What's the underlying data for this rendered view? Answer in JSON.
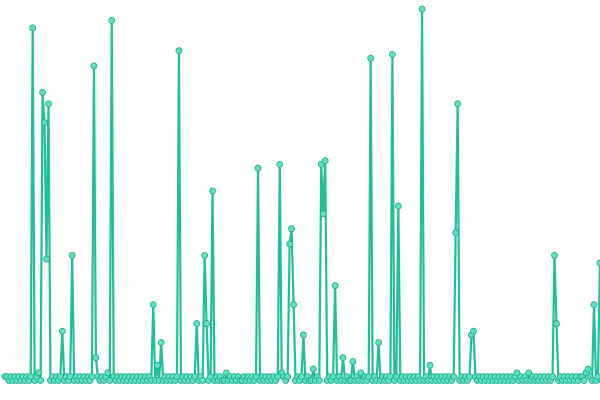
{
  "colors": {
    "line": "#1fbf9b",
    "marker_fill": "#5fe0c2",
    "marker_stroke": "#18a888",
    "background": "#ffffff"
  },
  "chart_data": {
    "type": "line",
    "title": "",
    "xlabel": "",
    "ylabel": "",
    "grid": false,
    "legend": "none",
    "xlim": [
      0,
      299
    ],
    "ylim": [
      0,
      100
    ],
    "series": [
      {
        "values": [
          3,
          3,
          2,
          3,
          2,
          3,
          2,
          3,
          2,
          3,
          2,
          3,
          2,
          3,
          95,
          2,
          3,
          4,
          2,
          78,
          70,
          34,
          75,
          2,
          3,
          2,
          3,
          2,
          3,
          15,
          2,
          3,
          2,
          3,
          35,
          2,
          3,
          2,
          3,
          2,
          3,
          2,
          3,
          2,
          3,
          85,
          8,
          3,
          2,
          3,
          2,
          3,
          4,
          2,
          97,
          3,
          2,
          3,
          2,
          3,
          2,
          3,
          2,
          3,
          2,
          3,
          2,
          3,
          2,
          3,
          2,
          3,
          2,
          3,
          2,
          22,
          2,
          6,
          2,
          12,
          2,
          3,
          2,
          3,
          2,
          3,
          2,
          3,
          89,
          2,
          3,
          2,
          3,
          2,
          3,
          2,
          3,
          17,
          2,
          3,
          2,
          35,
          17,
          2,
          3,
          52,
          2,
          3,
          2,
          3,
          2,
          2,
          4,
          2,
          3,
          2,
          3,
          2,
          3,
          2,
          2,
          3,
          2,
          3,
          2,
          3,
          2,
          3,
          58,
          2,
          3,
          2,
          3,
          2,
          3,
          2,
          3,
          2,
          3,
          59,
          4,
          3,
          2,
          3,
          38,
          42,
          22,
          2,
          3,
          2,
          3,
          14,
          2,
          3,
          2,
          2,
          5,
          2,
          3,
          2,
          59,
          46,
          60,
          2,
          3,
          2,
          3,
          27,
          2,
          3,
          2,
          8,
          2,
          3,
          2,
          2,
          7,
          2,
          3,
          2,
          4,
          2,
          3,
          2,
          3,
          87,
          2,
          3,
          2,
          12,
          2,
          3,
          2,
          3,
          2,
          3,
          88,
          2,
          3,
          48,
          2,
          3,
          2,
          3,
          2,
          3,
          2,
          3,
          2,
          3,
          2,
          100,
          2,
          3,
          2,
          6,
          2,
          3,
          2,
          3,
          2,
          3,
          2,
          3,
          2,
          3,
          2,
          3,
          41,
          75,
          2,
          3,
          2,
          3,
          2,
          3,
          14,
          15,
          3,
          2,
          3,
          2,
          3,
          2,
          3,
          2,
          3,
          2,
          3,
          2,
          3,
          2,
          3,
          2,
          3,
          2,
          3,
          2,
          3,
          4,
          2,
          3,
          2,
          3,
          2,
          4,
          2,
          3,
          2,
          3,
          2,
          3,
          2,
          3,
          2,
          3,
          2,
          3,
          35,
          17,
          2,
          3,
          2,
          3,
          2,
          3,
          2,
          3,
          2,
          3,
          2,
          3,
          3,
          2,
          4,
          5,
          3,
          2,
          22,
          2,
          3,
          33,
          2
        ]
      }
    ]
  }
}
